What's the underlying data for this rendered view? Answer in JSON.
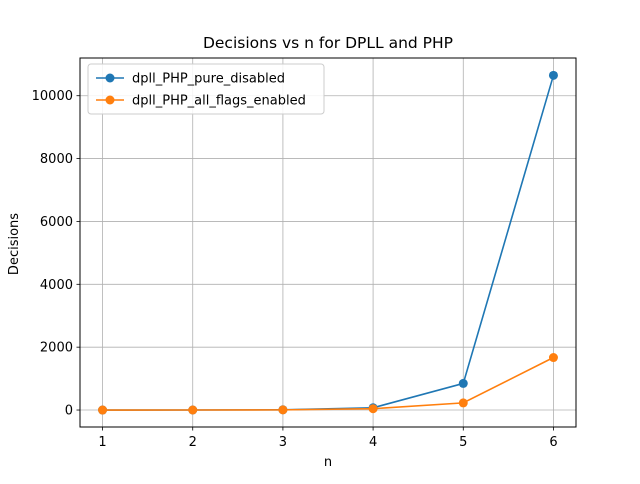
{
  "chart_data": {
    "type": "line",
    "title": "Decisions vs n for DPLL and PHP",
    "xlabel": "n",
    "ylabel": "Decisions",
    "x": [
      1,
      2,
      3,
      4,
      5,
      6
    ],
    "xticks": [
      "1",
      "2",
      "3",
      "4",
      "5",
      "6"
    ],
    "yticks": [
      0,
      2000,
      4000,
      6000,
      8000,
      10000
    ],
    "ytick_labels": [
      "0",
      "2000",
      "4000",
      "6000",
      "8000",
      "10000"
    ],
    "xlim": [
      0.75,
      6.25
    ],
    "ylim": [
      -540,
      11200
    ],
    "grid": true,
    "legend_position": "top-left",
    "series": [
      {
        "name": "dpll_PHP_pure_disabled",
        "values": [
          0,
          1,
          7,
          72,
          846,
          10649
        ],
        "color": "#1f77b4"
      },
      {
        "name": "dpll_PHP_all_flags_enabled",
        "values": [
          0,
          1,
          5,
          42,
          227,
          1671
        ],
        "color": "#ff7f0e"
      }
    ]
  }
}
